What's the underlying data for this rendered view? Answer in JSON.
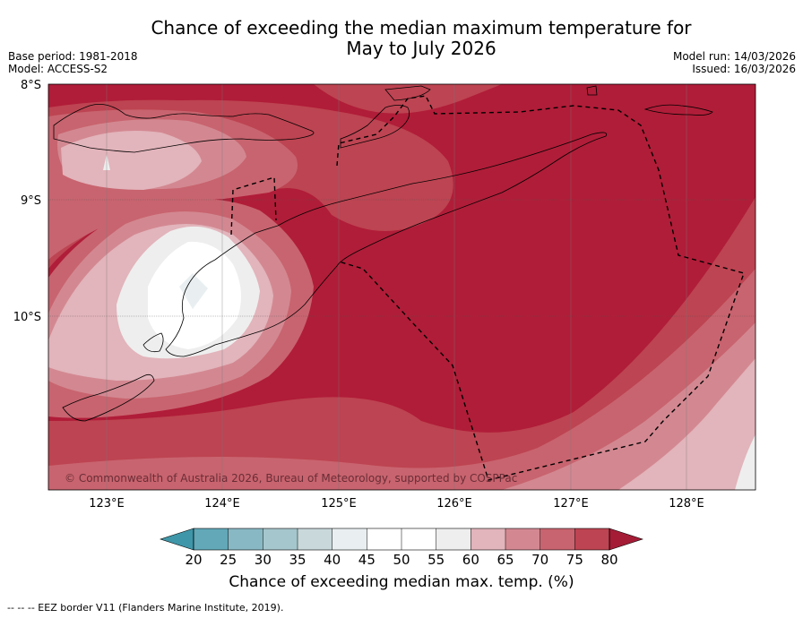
{
  "title": "Chance of exceeding the median maximum temperature for May to July 2026",
  "title_line1": "Chance of exceeding the median maximum temperature for",
  "title_line2": "May to July 2026",
  "meta_left": [
    "Base period: 1981-2018",
    "Model: ACCESS-S2"
  ],
  "meta_right": [
    "Model run: 14/03/2026",
    "Issued: 16/03/2026"
  ],
  "lat_labels": [
    "8°S",
    "9°S",
    "10°S"
  ],
  "lon_labels": [
    "123°E",
    "124°E",
    "125°E",
    "126°E",
    "127°E",
    "128°E"
  ],
  "copyright": "© Commonwealth of Australia 2026, Bureau of Meteorology, supported by COSPPac",
  "colorbar": {
    "ticks": [
      "20",
      "25",
      "30",
      "35",
      "40",
      "45",
      "50",
      "55",
      "60",
      "65",
      "70",
      "75",
      "80"
    ],
    "colors": [
      "#62a8b8",
      "#88b8c4",
      "#a5c6cc",
      "#c9d8db",
      "#e9eff1",
      "#ffffff",
      "#ffffff",
      "#eeeeee",
      "#e2b4bb",
      "#d38891",
      "#c8646f",
      "#bd4452"
    ],
    "under_color": "#3f96a8",
    "over_color": "#a51c36",
    "label": "Chance of exceeding median max. temp. (%)"
  },
  "field_colors": {
    "c55": "#eeeeee",
    "c60": "#e2b4bb",
    "c65": "#d38891",
    "c70": "#c8646f",
    "c75": "#bd4452",
    "c80": "#b01d38",
    "c45": "#ffffff",
    "c40": "#e9eff1"
  },
  "footer": "-- -- -- EEZ border V11 (Flanders Marine Institute, 2019)."
}
